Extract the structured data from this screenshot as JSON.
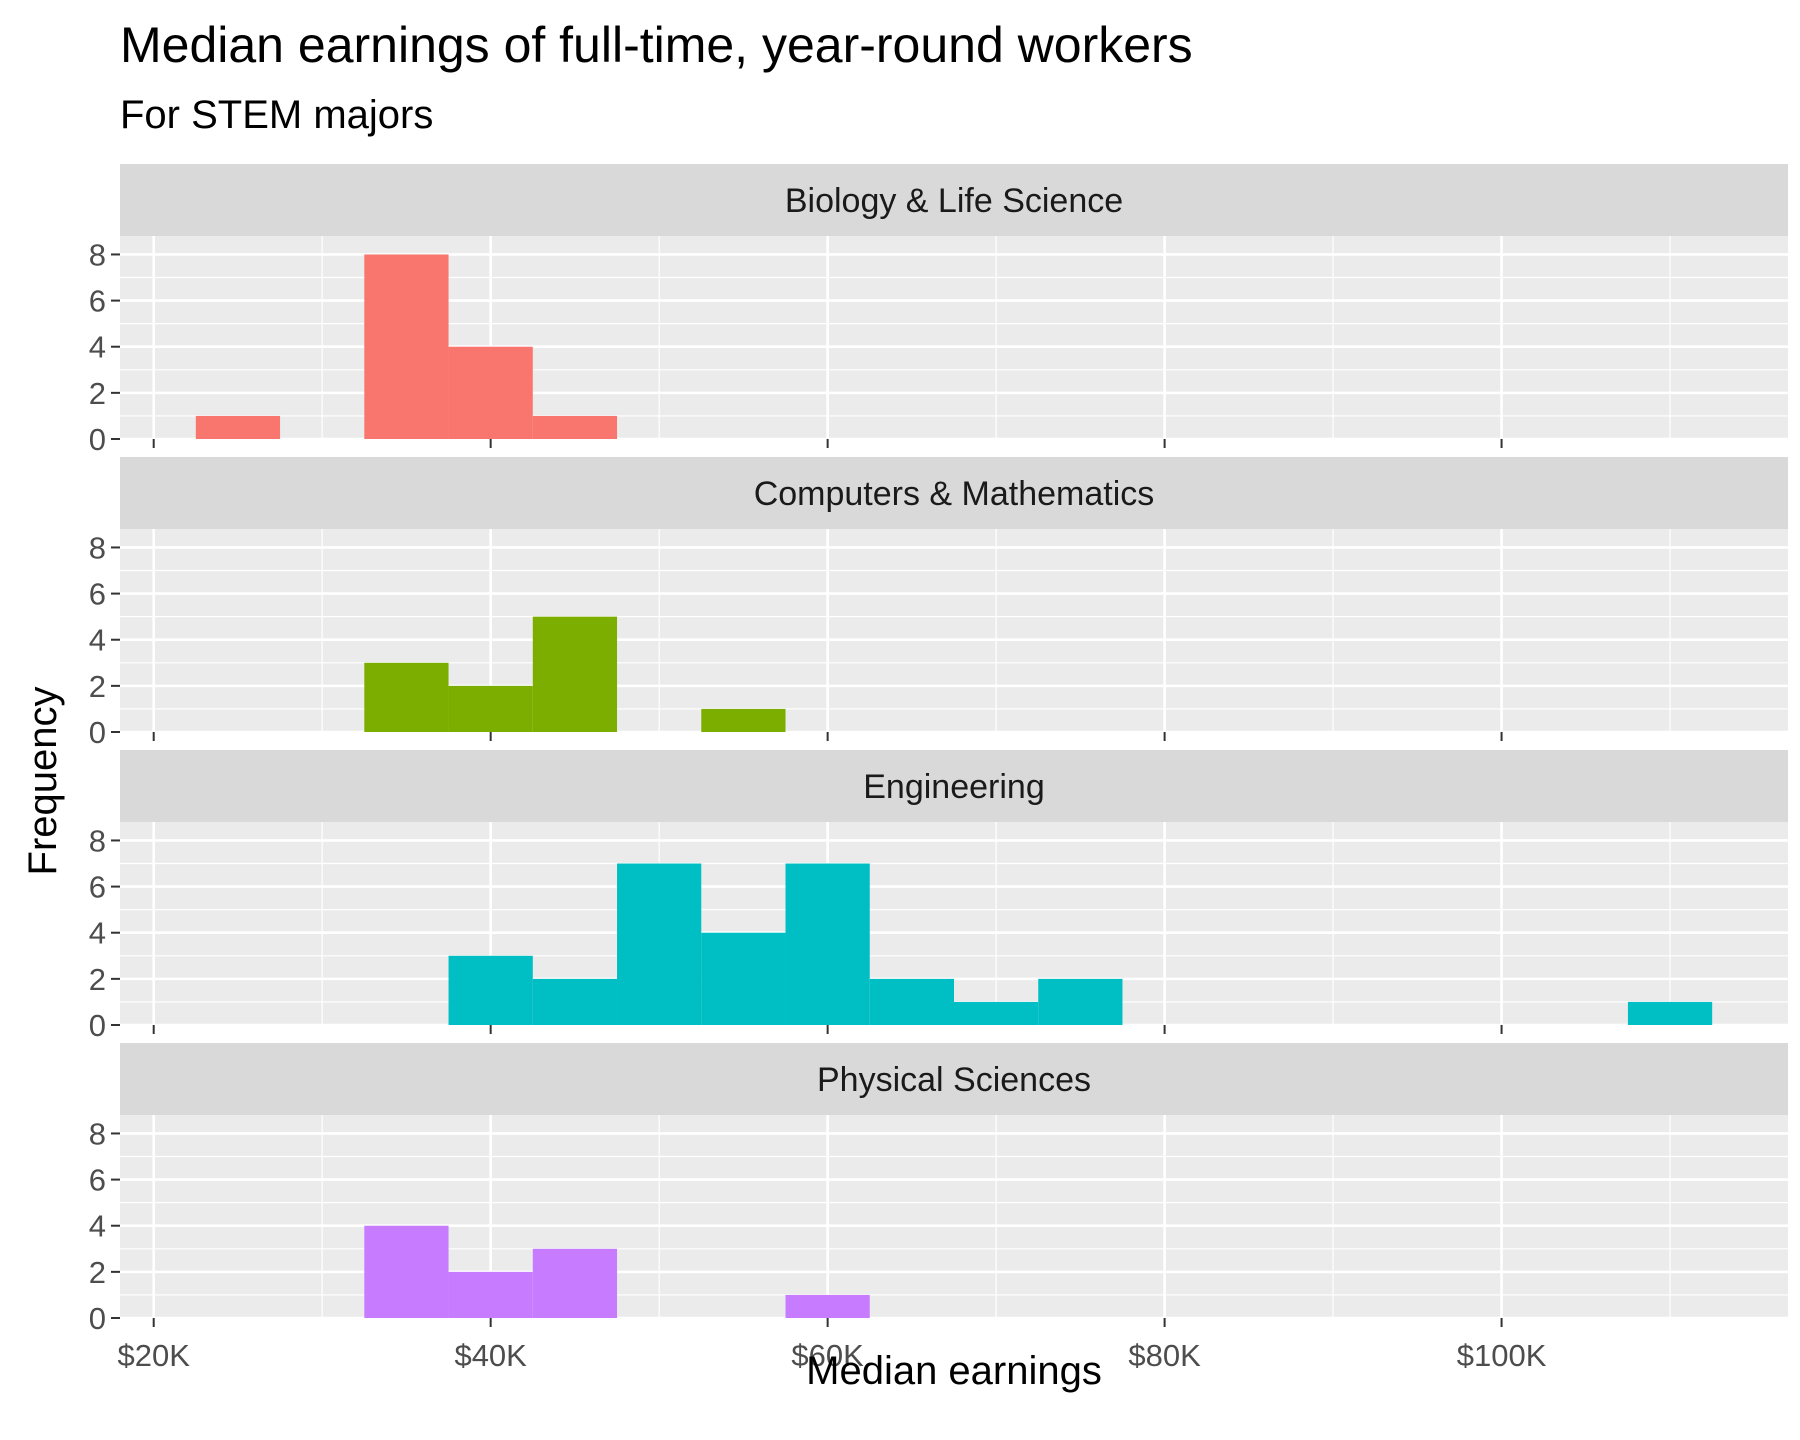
{
  "chart_data": {
    "type": "bar",
    "chart_kind": "faceted histogram",
    "title": "Median earnings of full-time, year-round workers",
    "subtitle": "For STEM majors",
    "xlabel": "Median earnings",
    "ylabel": "Frequency",
    "xlim": [
      18000,
      117000
    ],
    "ylim": [
      0,
      8.8
    ],
    "x_ticks": [
      20000,
      40000,
      60000,
      80000,
      100000
    ],
    "x_tick_labels": [
      "$20K",
      "$40K",
      "$60K",
      "$80K",
      "$100K"
    ],
    "y_ticks": [
      0,
      2,
      4,
      6,
      8
    ],
    "y_tick_labels": [
      "0",
      "2",
      "4",
      "6",
      "8"
    ],
    "bin_width": 5000,
    "grid": true,
    "legend": "none",
    "facets": [
      {
        "name": "Biology & Life Science",
        "color": "#F8766D",
        "bins": [
          {
            "start": 22500,
            "end": 27500,
            "count": 1
          },
          {
            "start": 32500,
            "end": 37500,
            "count": 8
          },
          {
            "start": 37500,
            "end": 42500,
            "count": 4
          },
          {
            "start": 42500,
            "end": 47500,
            "count": 1
          }
        ]
      },
      {
        "name": "Computers & Mathematics",
        "color": "#7CAE00",
        "bins": [
          {
            "start": 32500,
            "end": 37500,
            "count": 3
          },
          {
            "start": 37500,
            "end": 42500,
            "count": 2
          },
          {
            "start": 42500,
            "end": 47500,
            "count": 5
          },
          {
            "start": 52500,
            "end": 57500,
            "count": 1
          }
        ]
      },
      {
        "name": "Engineering",
        "color": "#00BFC4",
        "bins": [
          {
            "start": 37500,
            "end": 42500,
            "count": 3
          },
          {
            "start": 42500,
            "end": 47500,
            "count": 2
          },
          {
            "start": 47500,
            "end": 52500,
            "count": 7
          },
          {
            "start": 52500,
            "end": 57500,
            "count": 4
          },
          {
            "start": 57500,
            "end": 62500,
            "count": 7
          },
          {
            "start": 62500,
            "end": 67500,
            "count": 2
          },
          {
            "start": 67500,
            "end": 72500,
            "count": 1
          },
          {
            "start": 72500,
            "end": 77500,
            "count": 2
          },
          {
            "start": 107500,
            "end": 112500,
            "count": 1
          }
        ]
      },
      {
        "name": "Physical Sciences",
        "color": "#C77CFF",
        "bins": [
          {
            "start": 32500,
            "end": 37500,
            "count": 4
          },
          {
            "start": 37500,
            "end": 42500,
            "count": 2
          },
          {
            "start": 42500,
            "end": 47500,
            "count": 3
          },
          {
            "start": 57500,
            "end": 62500,
            "count": 1
          }
        ]
      }
    ]
  }
}
